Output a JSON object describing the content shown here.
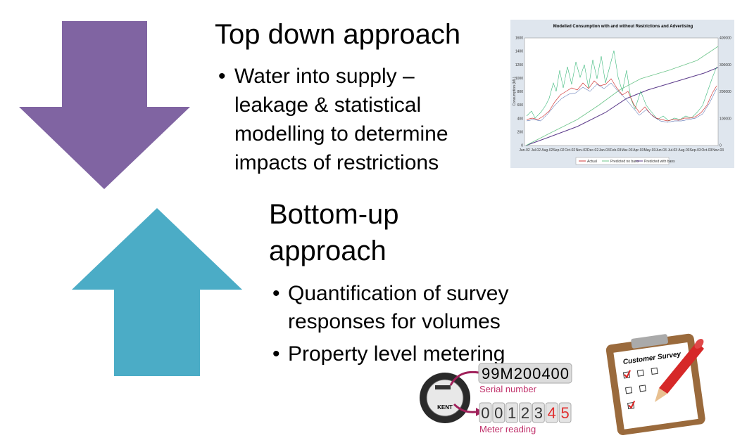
{
  "slide": {
    "top_down": {
      "heading": "Top down approach",
      "bullet_lines": [
        "Water into supply –",
        "leakage & statistical",
        "modelling to determine",
        "impacts of restrictions"
      ]
    },
    "bottom_up": {
      "heading_lines": [
        "Bottom-up",
        "approach"
      ],
      "bullets": [
        [
          "Quantification of survey",
          "responses for volumes"
        ],
        [
          "Property level metering"
        ]
      ]
    },
    "bullet_symbol": "•",
    "inset_chart": {
      "title": "Modelled Consumption with and without Restrictions and Advertising",
      "y_label": "Consumption (ML)",
      "y_ticks": [
        0,
        200,
        400,
        600,
        800,
        1000,
        1200,
        1400,
        1600
      ],
      "y2_ticks": [
        0,
        100000,
        200000,
        300000,
        400000
      ],
      "x_labels": [
        "Jun-02",
        "Jul-02",
        "Aug-02",
        "Sep-02",
        "Oct-02",
        "Nov-02",
        "Dec-02",
        "Jan-03",
        "Feb-03",
        "Mar-03",
        "Apr-03",
        "May-03",
        "Jun-03",
        "Jul-03",
        "Aug-03",
        "Sep-03",
        "Oct-03",
        "Nov-03"
      ],
      "legend": [
        "Actual",
        "Predicted no bans",
        "Predicted with bans"
      ]
    },
    "meter": {
      "brand": "KENT",
      "serial": "99M200400",
      "serial_label": "Serial number",
      "reading_digits": [
        "0",
        "0",
        "1",
        "2",
        "3",
        "4",
        "5"
      ],
      "reading_label": "Meter reading"
    },
    "survey": {
      "title": "Customer Survey"
    }
  }
}
